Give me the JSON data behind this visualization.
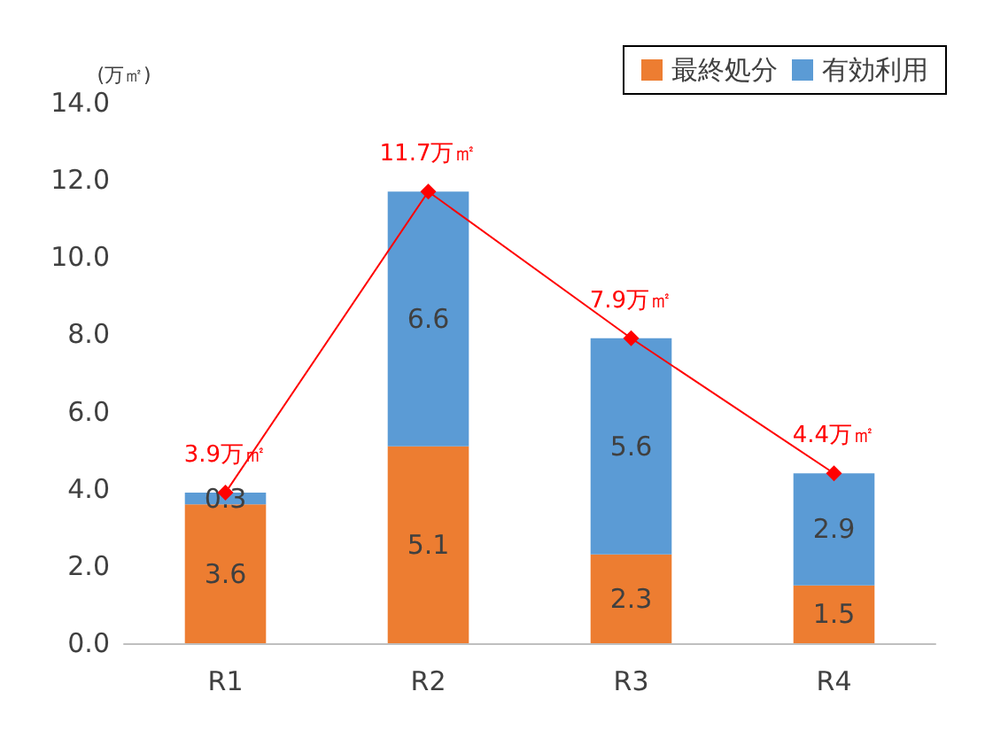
{
  "chart_data": {
    "type": "bar",
    "ylabel": "(万㎡)",
    "categories": [
      "R1",
      "R2",
      "R3",
      "R4"
    ],
    "stacked": true,
    "data_labels": true,
    "legend": "top right",
    "grid": false,
    "ylim": [
      0,
      14
    ],
    "yticks": [
      {
        "value": 0,
        "label": "0.0"
      },
      {
        "value": 2,
        "label": "2.0"
      },
      {
        "value": 4,
        "label": "4.0"
      },
      {
        "value": 6,
        "label": "6.0"
      },
      {
        "value": 8,
        "label": "8.0"
      },
      {
        "value": 10,
        "label": "10.0"
      },
      {
        "value": 12,
        "label": "12.0"
      },
      {
        "value": 14,
        "label": "14.0"
      }
    ],
    "series": [
      {
        "name": "最終処分",
        "color": "#ed7d31",
        "values": [
          3.6,
          5.1,
          2.3,
          1.5
        ]
      },
      {
        "name": "有効利用",
        "color": "#5b9bd5",
        "values": [
          0.3,
          6.6,
          5.6,
          2.9
        ]
      },
      {
        "type": "line",
        "color": "#ff0000",
        "marker": "diamond",
        "values": [
          3.9,
          11.7,
          7.9,
          4.4
        ],
        "value_labels": [
          "3.9万㎡",
          "11.7万㎡",
          "7.9万㎡",
          "4.4万㎡"
        ]
      }
    ]
  }
}
